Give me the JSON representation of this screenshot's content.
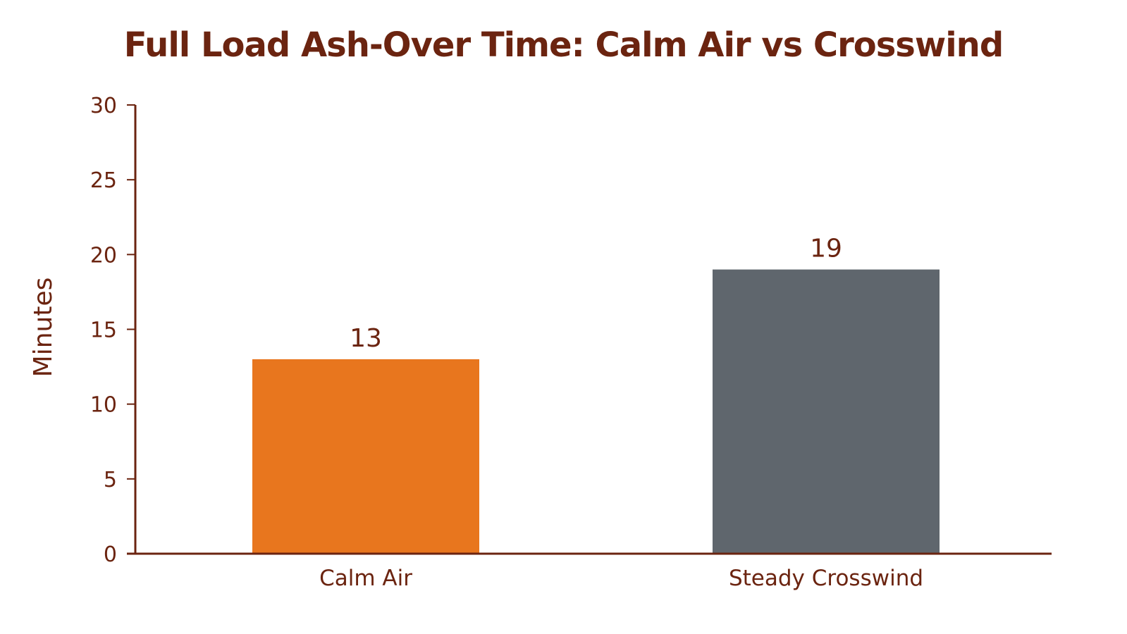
{
  "chart_data": {
    "type": "bar",
    "title": "Full Load Ash-Over Time: Calm Air vs Crosswind",
    "xlabel": "",
    "ylabel": "Minutes",
    "categories": [
      "Calm Air",
      "Steady Crosswind"
    ],
    "values": [
      13,
      19
    ],
    "bar_colors": [
      "#e8761e",
      "#5f666d"
    ],
    "ylim": [
      0,
      30
    ],
    "yticks": [
      0,
      5,
      10,
      15,
      20,
      25,
      30
    ],
    "data_labels": [
      "13",
      "19"
    ],
    "grid": false,
    "legend": "none"
  },
  "colors": {
    "text": "#6b2410",
    "axis": "#6b2410"
  }
}
